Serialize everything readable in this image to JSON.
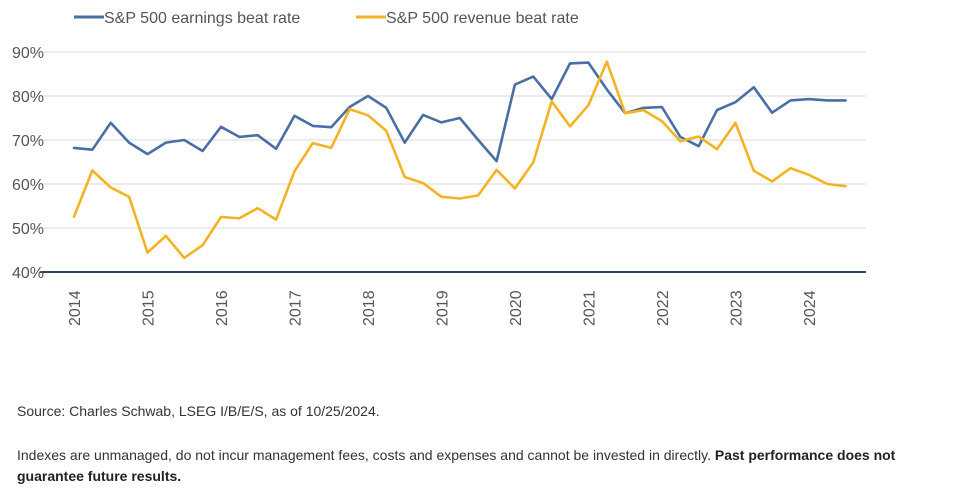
{
  "chart_data": {
    "type": "line",
    "title": "",
    "xlabel": "",
    "ylabel": "",
    "ylim": [
      40,
      90
    ],
    "xlim": [
      2014,
      2024.75
    ],
    "y_ticks": [
      {
        "value": 40,
        "label": "40%"
      },
      {
        "value": 50,
        "label": "50%"
      },
      {
        "value": 60,
        "label": "60%"
      },
      {
        "value": 70,
        "label": "70%"
      },
      {
        "value": 80,
        "label": "80%"
      },
      {
        "value": 90,
        "label": "90%"
      }
    ],
    "x_ticks": [
      "2014",
      "2015",
      "2016",
      "2017",
      "2018",
      "2019",
      "2020",
      "2021",
      "2022",
      "2023",
      "2024"
    ],
    "grid": "horizontal",
    "legend_position": "top-left",
    "x": [
      2014.0,
      2014.25,
      2014.5,
      2014.75,
      2015.0,
      2015.25,
      2015.5,
      2015.75,
      2016.0,
      2016.25,
      2016.5,
      2016.75,
      2017.0,
      2017.25,
      2017.5,
      2017.75,
      2018.0,
      2018.25,
      2018.5,
      2018.75,
      2019.0,
      2019.25,
      2019.5,
      2019.75,
      2020.0,
      2020.25,
      2020.5,
      2020.75,
      2021.0,
      2021.25,
      2021.5,
      2021.75,
      2022.0,
      2022.25,
      2022.5,
      2022.75,
      2023.0,
      2023.25,
      2023.5,
      2023.75,
      2024.0,
      2024.25,
      2024.5
    ],
    "series": [
      {
        "name": "S&P 500 earnings beat rate",
        "color": "#4a6fa5",
        "values": [
          68.2,
          67.8,
          73.9,
          69.4,
          66.8,
          69.4,
          70.0,
          67.5,
          73.0,
          70.7,
          71.1,
          68.0,
          75.5,
          73.2,
          72.9,
          77.5,
          80.0,
          77.3,
          69.4,
          75.7,
          74.0,
          75.0,
          70.0,
          65.2,
          82.6,
          84.4,
          79.3,
          87.4,
          87.6,
          81.5,
          76.1,
          77.3,
          77.5,
          70.7,
          68.6,
          76.8,
          78.6,
          82.0,
          76.2,
          79.0,
          79.3,
          79.0,
          79.0
        ]
      },
      {
        "name": "S&P 500 revenue beat rate",
        "color": "#f5b324",
        "values": [
          52.6,
          63.1,
          59.2,
          57.1,
          44.4,
          48.2,
          43.2,
          46.1,
          52.5,
          52.2,
          54.5,
          51.9,
          62.9,
          69.3,
          68.2,
          77.0,
          75.6,
          72.1,
          61.6,
          60.2,
          57.1,
          56.7,
          57.4,
          63.2,
          59.0,
          64.9,
          78.8,
          73.1,
          77.9,
          87.8,
          76.1,
          76.8,
          74.3,
          69.7,
          70.8,
          67.9,
          73.9,
          63.0,
          60.6,
          63.6,
          62.1,
          60.0,
          59.5
        ]
      }
    ]
  },
  "notes": {
    "source": "Source: Charles Schwab, LSEG I/B/E/S, as of 10/25/2024.",
    "disclaimer": "Indexes are unmanaged, do not incur management fees, costs and expenses and cannot be invested in directly. ",
    "disclaimer_bold": "Past performance does not guarantee future results."
  }
}
